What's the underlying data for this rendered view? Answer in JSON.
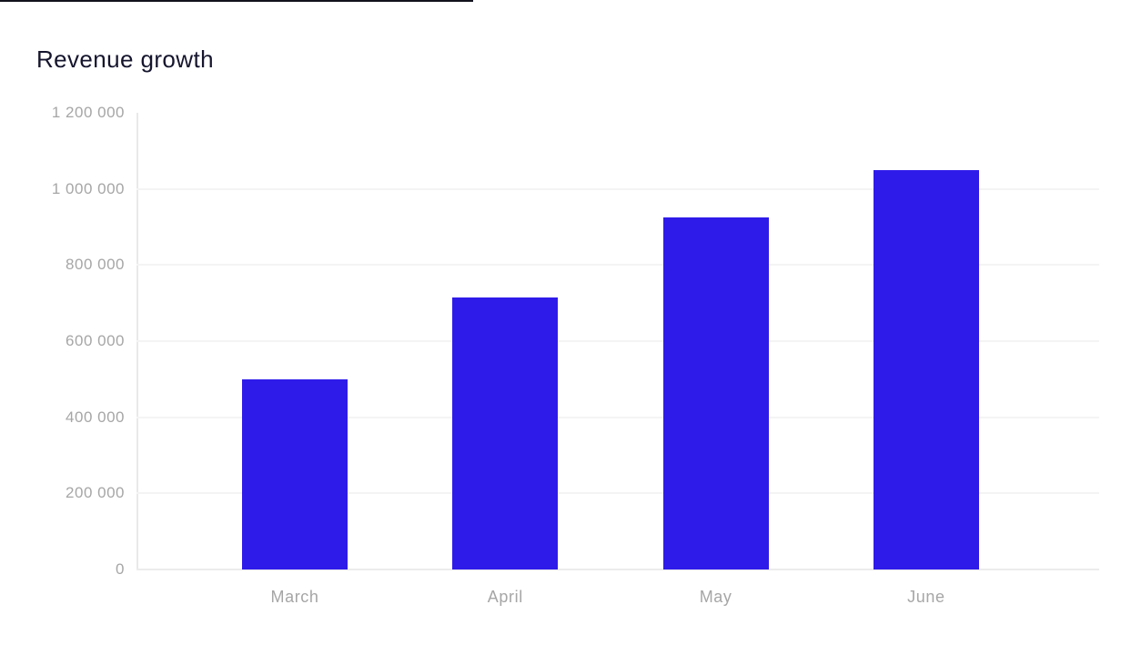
{
  "chart_title": "Revenue growth",
  "chart_data": {
    "type": "bar",
    "title": "Revenue growth",
    "categories": [
      "March",
      "April",
      "May",
      "June"
    ],
    "values": [
      500000,
      715000,
      925000,
      1050000
    ],
    "xlabel": "",
    "ylabel": "",
    "ylim": [
      0,
      1200000
    ],
    "ytick_interval": 200000,
    "ytick_labels": [
      "0",
      "200 000",
      "400 000",
      "600 000",
      "800 000",
      "1 000 000",
      "1 200 000"
    ],
    "grid": "horizontal",
    "legend_position": "none",
    "bar_color": "#2f1be9"
  },
  "colors": {
    "background": "#ffffff",
    "bar": "#2f1be9",
    "title_text": "#15152e",
    "tick_label": "#a6a6a6",
    "gridline": "#f4f4f4",
    "axis_line": "#e9e9e9",
    "top_line": "#12121c"
  }
}
